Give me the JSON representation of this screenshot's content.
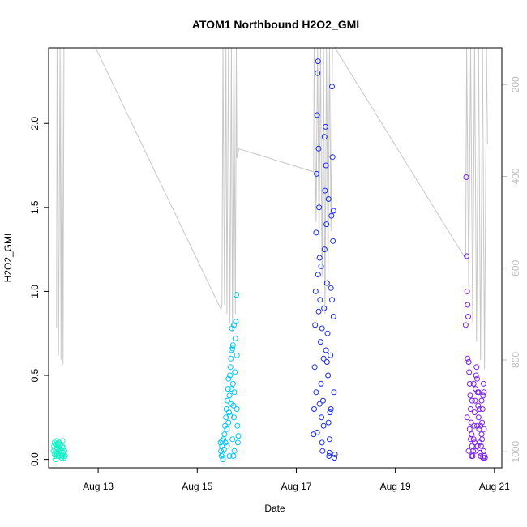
{
  "chart_data": {
    "type": "scatter",
    "title": "ATOM1 Northbound H2O2_GMI",
    "xlabel": "Date",
    "ylabel": "H2O2_GMI",
    "xlim": [
      12.0,
      21.15
    ],
    "ylim": [
      -0.05,
      2.45
    ],
    "y_ticks": [
      "0.0",
      "0.5",
      "1.0",
      "1.5",
      "2.0"
    ],
    "y_tick_values": [
      0.0,
      0.5,
      1.0,
      1.5,
      2.0
    ],
    "x_ticks": [
      "Aug 13",
      "Aug 15",
      "Aug 17",
      "Aug 19",
      "Aug 21"
    ],
    "x_tick_values": [
      13,
      15,
      17,
      19,
      21
    ],
    "secondary_axis": {
      "ticks": [
        "200",
        "400",
        "600",
        "800",
        "1000"
      ],
      "tick_values": [
        200,
        400,
        600,
        800,
        1000
      ],
      "ylim_reversed": [
        1035,
        120
      ],
      "color": "#bdbdbd"
    },
    "pressure_trace": {
      "color": "#c8c8c8",
      "points": [
        [
          12.16,
          730
        ],
        [
          12.17,
          120
        ],
        [
          12.2,
          790
        ],
        [
          12.23,
          120
        ],
        [
          12.25,
          800
        ],
        [
          12.27,
          120
        ],
        [
          12.29,
          810
        ],
        [
          12.31,
          120
        ],
        [
          12.33,
          120
        ],
        [
          12.95,
          120
        ],
        [
          15.48,
          690
        ],
        [
          15.5,
          680
        ],
        [
          15.52,
          120
        ],
        [
          15.55,
          680
        ],
        [
          15.58,
          120
        ],
        [
          15.6,
          700
        ],
        [
          15.63,
          120
        ],
        [
          15.66,
          720
        ],
        [
          15.69,
          120
        ],
        [
          15.71,
          740
        ],
        [
          15.74,
          120
        ],
        [
          15.77,
          700
        ],
        [
          15.79,
          120
        ],
        [
          15.8,
          360
        ],
        [
          15.84,
          340
        ],
        [
          17.35,
          390
        ],
        [
          17.36,
          120
        ],
        [
          17.4,
          500
        ],
        [
          17.43,
          120
        ],
        [
          17.46,
          560
        ],
        [
          17.49,
          120
        ],
        [
          17.52,
          620
        ],
        [
          17.55,
          120
        ],
        [
          17.58,
          700
        ],
        [
          17.61,
          120
        ],
        [
          17.64,
          620
        ],
        [
          17.67,
          120
        ],
        [
          17.7,
          520
        ],
        [
          17.73,
          120
        ],
        [
          17.75,
          120
        ],
        [
          17.78,
          120
        ],
        [
          20.42,
          580
        ],
        [
          20.44,
          120
        ],
        [
          20.48,
          640
        ],
        [
          20.52,
          120
        ],
        [
          20.56,
          720
        ],
        [
          20.6,
          120
        ],
        [
          20.64,
          760
        ],
        [
          20.68,
          120
        ],
        [
          20.72,
          800
        ],
        [
          20.76,
          120
        ],
        [
          20.8,
          820
        ],
        [
          20.84,
          120
        ],
        [
          20.86,
          330
        ]
      ]
    },
    "colors": [
      "#18f0c8",
      "#00c4ff",
      "#1a2cf0",
      "#7a20f0"
    ],
    "series": [
      {
        "color": "#18f0c8",
        "points": [
          [
            12.1,
            0.05
          ],
          [
            12.11,
            0.08
          ],
          [
            12.12,
            0.03
          ],
          [
            12.12,
            0.1
          ],
          [
            12.13,
            0.06
          ],
          [
            12.14,
            0.02
          ],
          [
            12.14,
            0.09
          ],
          [
            12.15,
            0.04
          ],
          [
            12.16,
            0.07
          ],
          [
            12.16,
            0.11
          ],
          [
            12.17,
            0.03
          ],
          [
            12.18,
            0.06
          ],
          [
            12.18,
            0.09
          ],
          [
            12.19,
            0.02
          ],
          [
            12.2,
            0.05
          ],
          [
            12.2,
            0.08
          ],
          [
            12.21,
            0.1
          ],
          [
            12.22,
            0.04
          ],
          [
            12.22,
            0.07
          ],
          [
            12.23,
            0.02
          ],
          [
            12.24,
            0.06
          ],
          [
            12.24,
            0.09
          ],
          [
            12.25,
            0.03
          ],
          [
            12.26,
            0.05
          ],
          [
            12.27,
            0.08
          ],
          [
            12.28,
            0.02
          ],
          [
            12.28,
            0.11
          ],
          [
            12.29,
            0.04
          ],
          [
            12.3,
            0.07
          ],
          [
            12.31,
            0.01
          ],
          [
            12.32,
            0.05
          ],
          [
            12.33,
            0.02
          ],
          [
            12.14,
            0.0
          ],
          [
            12.26,
            0.01
          ],
          [
            12.3,
            0.03
          ]
        ]
      },
      {
        "color": "#00c4ff",
        "points": [
          [
            15.47,
            0.1
          ],
          [
            15.48,
            0.05
          ],
          [
            15.49,
            0.02
          ],
          [
            15.5,
            0.11
          ],
          [
            15.5,
            0.08
          ],
          [
            15.51,
            0.03
          ],
          [
            15.52,
            0.0
          ],
          [
            15.53,
            0.12
          ],
          [
            15.54,
            0.06
          ],
          [
            15.55,
            0.15
          ],
          [
            15.56,
            0.2
          ],
          [
            15.57,
            0.1
          ],
          [
            15.58,
            0.25
          ],
          [
            15.59,
            0.3
          ],
          [
            15.6,
            0.18
          ],
          [
            15.61,
            0.35
          ],
          [
            15.62,
            0.42
          ],
          [
            15.63,
            0.22
          ],
          [
            15.64,
            0.28
          ],
          [
            15.65,
            0.38
          ],
          [
            15.66,
            0.5
          ],
          [
            15.67,
            0.55
          ],
          [
            15.68,
            0.6
          ],
          [
            15.69,
            0.65
          ],
          [
            15.7,
            0.78
          ],
          [
            15.71,
            0.66
          ],
          [
            15.72,
            0.45
          ],
          [
            15.73,
            0.32
          ],
          [
            15.74,
            0.25
          ],
          [
            15.75,
            0.4
          ],
          [
            15.76,
            0.52
          ],
          [
            15.77,
            0.72
          ],
          [
            15.78,
            0.82
          ],
          [
            15.79,
            0.98
          ],
          [
            15.8,
            0.62
          ],
          [
            15.8,
            0.3
          ],
          [
            15.81,
            0.2
          ],
          [
            15.82,
            0.1
          ],
          [
            15.83,
            0.14
          ],
          [
            15.75,
            0.05
          ],
          [
            15.73,
            0.02
          ],
          [
            15.71,
            0.12
          ],
          [
            15.6,
            0.08
          ],
          [
            15.65,
            0.02
          ],
          [
            15.68,
            0.33
          ],
          [
            15.66,
            0.26
          ],
          [
            15.72,
            0.68
          ],
          [
            15.74,
            0.8
          ],
          [
            15.69,
            0.42
          ],
          [
            15.63,
            0.48
          ]
        ]
      },
      {
        "color": "#1a2cf0",
        "points": [
          [
            17.35,
            0.15
          ],
          [
            17.36,
            0.3
          ],
          [
            17.37,
            0.55
          ],
          [
            17.38,
            0.8
          ],
          [
            17.39,
            1.0
          ],
          [
            17.4,
            1.35
          ],
          [
            17.41,
            1.7
          ],
          [
            17.42,
            2.05
          ],
          [
            17.43,
            2.3
          ],
          [
            17.44,
            2.37
          ],
          [
            17.45,
            1.85
          ],
          [
            17.46,
            1.5
          ],
          [
            17.47,
            1.2
          ],
          [
            17.48,
            0.95
          ],
          [
            17.49,
            0.7
          ],
          [
            17.5,
            0.45
          ],
          [
            17.51,
            0.25
          ],
          [
            17.52,
            0.1
          ],
          [
            17.53,
            0.05
          ],
          [
            17.54,
            0.35
          ],
          [
            17.55,
            0.6
          ],
          [
            17.56,
            0.9
          ],
          [
            17.57,
            1.25
          ],
          [
            17.58,
            1.6
          ],
          [
            17.59,
            1.98
          ],
          [
            17.6,
            1.75
          ],
          [
            17.61,
            1.4
          ],
          [
            17.62,
            1.05
          ],
          [
            17.63,
            0.75
          ],
          [
            17.64,
            0.5
          ],
          [
            17.65,
            0.22
          ],
          [
            17.66,
            0.02
          ],
          [
            17.67,
            0.04
          ],
          [
            17.68,
            0.28
          ],
          [
            17.69,
            0.62
          ],
          [
            17.7,
            1.02
          ],
          [
            17.71,
            1.45
          ],
          [
            17.72,
            2.22
          ],
          [
            17.73,
            1.8
          ],
          [
            17.74,
            1.3
          ],
          [
            17.75,
            0.85
          ],
          [
            17.76,
            0.4
          ],
          [
            17.77,
            0.01
          ],
          [
            17.78,
            0.03
          ],
          [
            17.4,
            0.4
          ],
          [
            17.45,
            0.88
          ],
          [
            17.5,
            1.15
          ],
          [
            17.55,
            0.2
          ],
          [
            17.6,
            0.65
          ],
          [
            17.65,
            1.55
          ],
          [
            17.7,
            0.3
          ],
          [
            17.75,
            1.48
          ],
          [
            17.42,
            0.16
          ],
          [
            17.47,
            0.33
          ],
          [
            17.52,
            0.78
          ],
          [
            17.57,
            1.92
          ],
          [
            17.62,
            0.58
          ],
          [
            17.67,
            0.12
          ],
          [
            17.72,
            0.95
          ],
          [
            17.44,
            1.1
          ]
        ]
      },
      {
        "color": "#7a20f0",
        "points": [
          [
            20.42,
            0.8
          ],
          [
            20.43,
            1.68
          ],
          [
            20.44,
            1.21
          ],
          [
            20.45,
            1.0
          ],
          [
            20.46,
            0.92
          ],
          [
            20.47,
            0.85
          ],
          [
            20.48,
            0.58
          ],
          [
            20.49,
            0.52
          ],
          [
            20.5,
            0.45
          ],
          [
            20.51,
            0.38
          ],
          [
            20.52,
            0.3
          ],
          [
            20.53,
            0.22
          ],
          [
            20.54,
            0.15
          ],
          [
            20.55,
            0.08
          ],
          [
            20.56,
            0.02
          ],
          [
            20.57,
            0.05
          ],
          [
            20.58,
            0.12
          ],
          [
            20.59,
            0.2
          ],
          [
            20.6,
            0.28
          ],
          [
            20.61,
            0.35
          ],
          [
            20.62,
            0.42
          ],
          [
            20.63,
            0.5
          ],
          [
            20.64,
            0.55
          ],
          [
            20.65,
            0.48
          ],
          [
            20.66,
            0.4
          ],
          [
            20.67,
            0.32
          ],
          [
            20.68,
            0.25
          ],
          [
            20.69,
            0.18
          ],
          [
            20.7,
            0.1
          ],
          [
            20.71,
            0.04
          ],
          [
            20.72,
            0.02
          ],
          [
            20.73,
            0.08
          ],
          [
            20.74,
            0.15
          ],
          [
            20.75,
            0.22
          ],
          [
            20.76,
            0.3
          ],
          [
            20.77,
            0.38
          ],
          [
            20.78,
            0.45
          ],
          [
            20.79,
            0.4
          ],
          [
            20.8,
            0.02
          ],
          [
            20.81,
            0.01
          ],
          [
            20.45,
            0.25
          ],
          [
            20.5,
            0.18
          ],
          [
            20.55,
            0.35
          ],
          [
            20.6,
            0.1
          ],
          [
            20.65,
            0.2
          ],
          [
            20.7,
            0.3
          ],
          [
            20.75,
            0.12
          ],
          [
            20.78,
            0.05
          ],
          [
            20.48,
            0.05
          ],
          [
            20.52,
            0.12
          ],
          [
            20.58,
            0.45
          ],
          [
            20.62,
            0.05
          ],
          [
            20.68,
            0.4
          ],
          [
            20.72,
            0.2
          ],
          [
            20.77,
            0.01
          ],
          [
            20.46,
            0.6
          ],
          [
            20.54,
            0.02
          ],
          [
            20.66,
            0.08
          ],
          [
            20.74,
            0.35
          ],
          [
            20.79,
            0.18
          ]
        ]
      }
    ]
  }
}
